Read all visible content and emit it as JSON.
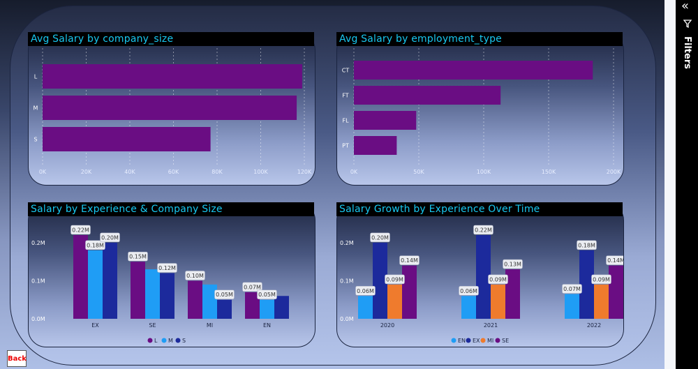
{
  "filters_pane": {
    "label": "Filters",
    "collapse_icon": "double-chevron-icon",
    "filter_icon": "funnel-icon"
  },
  "back_button": {
    "label": "Back"
  },
  "chart_data": [
    {
      "id": "company_size",
      "type": "bar",
      "orientation": "horizontal",
      "title": "Avg Salary by company_size",
      "categories": [
        "L",
        "M",
        "S"
      ],
      "values": [
        119000,
        116500,
        77000
      ],
      "xticks": [
        "0K",
        "20K",
        "40K",
        "60K",
        "80K",
        "100K",
        "120K"
      ],
      "xlim": [
        0,
        120000
      ],
      "grid": true,
      "color": "#6a0d83"
    },
    {
      "id": "employment_type",
      "type": "bar",
      "orientation": "horizontal",
      "title": "Avg Salary by employment_type",
      "categories": [
        "CT",
        "FT",
        "FL",
        "PT"
      ],
      "values": [
        184000,
        113000,
        48000,
        33000
      ],
      "xticks": [
        "0K",
        "50K",
        "100K",
        "150K",
        "200K"
      ],
      "xlim": [
        0,
        200000
      ],
      "grid": true,
      "color": "#6a0d83"
    },
    {
      "id": "experience_company_size",
      "type": "bar",
      "title": "Salary by Experience & Company Size",
      "categories": [
        "EX",
        "SE",
        "MI",
        "EN"
      ],
      "yticks": [
        "0.0M",
        "0.1M",
        "0.2M"
      ],
      "ylim": [
        0,
        0.22
      ],
      "legend_position": "bottom",
      "series": [
        {
          "name": "L",
          "color": "#6a0d83",
          "values": [
            0.22,
            0.15,
            0.1,
            0.07
          ],
          "labels": [
            "0.22M",
            "0.15M",
            "0.10M",
            "0.07M"
          ]
        },
        {
          "name": "M",
          "color": "#1f9df5",
          "values": [
            0.18,
            0.13,
            0.09,
            0.05
          ],
          "labels": [
            "0.18M",
            "",
            "",
            "0.05M"
          ]
        },
        {
          "name": "S",
          "color": "#1c2a9c",
          "values": [
            0.2,
            0.12,
            0.05,
            0.06
          ],
          "labels": [
            "0.20M",
            "0.12M",
            "0.05M",
            ""
          ]
        }
      ]
    },
    {
      "id": "growth_over_time",
      "type": "bar",
      "title": "Salary Growth by Experience Over Time",
      "categories": [
        "2020",
        "2021",
        "2022"
      ],
      "yticks": [
        "0.0M",
        "0.1M",
        "0.2M"
      ],
      "ylim": [
        0,
        0.22
      ],
      "legend_position": "bottom",
      "series": [
        {
          "name": "EN",
          "color": "#1f9df5",
          "values": [
            0.06,
            0.06,
            0.065
          ],
          "labels": [
            "0.06M",
            "0.06M",
            "0.07M"
          ]
        },
        {
          "name": "EX",
          "color": "#1c2a9c",
          "values": [
            0.2,
            0.22,
            0.18
          ],
          "labels": [
            "0.20M",
            "0.22M",
            "0.18M"
          ]
        },
        {
          "name": "MI",
          "color": "#ef7b2d",
          "values": [
            0.09,
            0.09,
            0.09
          ],
          "labels": [
            "0.09M",
            "0.09M",
            "0.09M"
          ]
        },
        {
          "name": "SE",
          "color": "#6a0d83",
          "values": [
            0.14,
            0.13,
            0.14
          ],
          "labels": [
            "0.14M",
            "0.13M",
            "0.14M"
          ]
        }
      ]
    }
  ]
}
